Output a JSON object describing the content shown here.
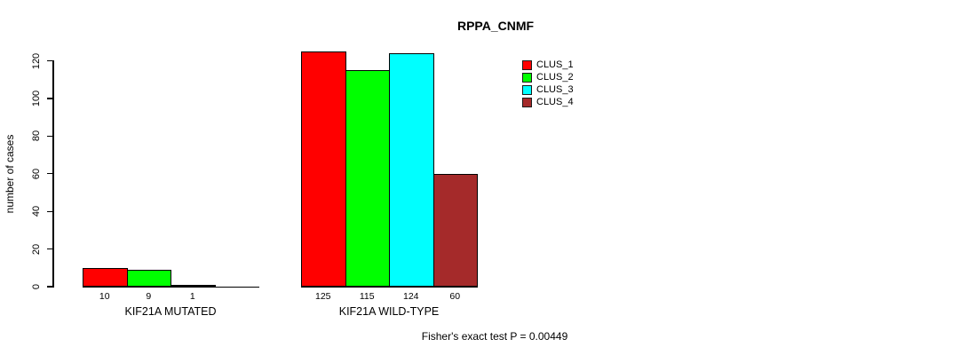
{
  "chart_data": {
    "type": "bar",
    "title": "RPPA_CNMF",
    "ylabel": "number of cases",
    "xlabel": "",
    "ylim": [
      0,
      130
    ],
    "yticks": [
      0,
      20,
      40,
      60,
      80,
      100,
      120
    ],
    "grid": false,
    "legend_position": "top-right",
    "series": [
      {
        "name": "CLUS_1",
        "color": "#FF0000"
      },
      {
        "name": "CLUS_2",
        "color": "#00FF00"
      },
      {
        "name": "CLUS_3",
        "color": "#00FFFF"
      },
      {
        "name": "CLUS_4",
        "color": "#A52A2A"
      }
    ],
    "categories": [
      "KIF21A MUTATED",
      "KIF21A WILD-TYPE"
    ],
    "groups": [
      {
        "label": "KIF21A MUTATED",
        "values": [
          10,
          9,
          1,
          0
        ],
        "bar_labels": [
          "10",
          "9",
          "1",
          ""
        ]
      },
      {
        "label": "KIF21A WILD-TYPE",
        "values": [
          125,
          115,
          124,
          60
        ],
        "bar_labels": [
          "125",
          "115",
          "124",
          "60"
        ]
      }
    ],
    "annotation": "Fisher's exact test P = 0.00449"
  }
}
